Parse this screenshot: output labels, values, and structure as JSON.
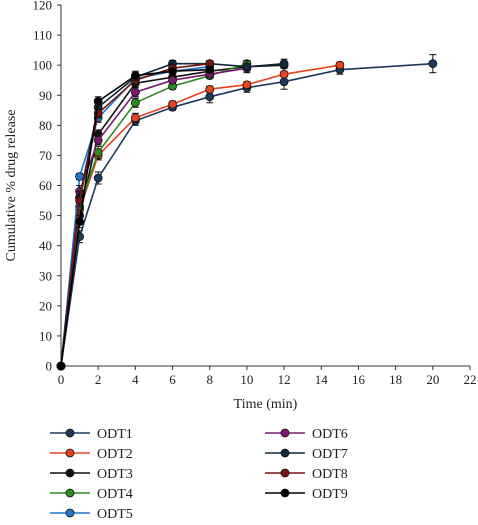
{
  "chart_data": {
    "type": "line",
    "xlabel": "Time (min)",
    "ylabel": "Cumulative % drug release",
    "xlim": [
      0,
      22
    ],
    "ylim": [
      0,
      120
    ],
    "xticks": [
      0,
      2,
      4,
      6,
      8,
      10,
      12,
      14,
      16,
      18,
      20,
      22
    ],
    "yticks": [
      0,
      10,
      20,
      30,
      40,
      50,
      60,
      70,
      80,
      90,
      100,
      110,
      120
    ],
    "grid": false,
    "legend_position": "bottom",
    "series": [
      {
        "name": "ODT1",
        "color": "#1d3a5c",
        "x": [
          0,
          1,
          2,
          4,
          6,
          8,
          10,
          12,
          15,
          20
        ],
        "y": [
          0,
          43,
          62.5,
          81.5,
          86,
          89.5,
          92.5,
          94.5,
          98.5,
          100.5
        ],
        "err": [
          0,
          2,
          2,
          1.5,
          1,
          2,
          1.5,
          2.5,
          1.5,
          3
        ]
      },
      {
        "name": "ODT2",
        "color": "#e8431f",
        "x": [
          0,
          1,
          2,
          4,
          6,
          8,
          10,
          12,
          15
        ],
        "y": [
          0,
          52,
          70,
          82.5,
          87,
          92,
          93.5,
          97,
          100
        ],
        "err": [
          0,
          2,
          1.5,
          1.5,
          1,
          1,
          1,
          1,
          1
        ]
      },
      {
        "name": "ODT3",
        "color": "#111111",
        "x": [
          0,
          1,
          2,
          4,
          6,
          8,
          10,
          12
        ],
        "y": [
          0,
          50,
          77,
          94,
          96,
          98,
          99.5,
          100
        ],
        "err": [
          0,
          2,
          1.5,
          1.5,
          1,
          1,
          1,
          1
        ]
      },
      {
        "name": "ODT4",
        "color": "#2e8b1e",
        "x": [
          0,
          1,
          2,
          4,
          6,
          8,
          10
        ],
        "y": [
          0,
          53,
          71,
          87.5,
          93,
          96.5,
          100.5
        ],
        "err": [
          0,
          2,
          2,
          1.5,
          1,
          1,
          1
        ]
      },
      {
        "name": "ODT5",
        "color": "#1f77c8",
        "x": [
          0,
          1,
          2,
          4,
          6,
          8
        ],
        "y": [
          0,
          63,
          82.5,
          95.5,
          98,
          99.5
        ],
        "err": [
          0,
          1,
          1.5,
          1.5,
          1,
          1
        ]
      },
      {
        "name": "ODT6",
        "color": "#7a1a6e",
        "x": [
          0,
          1,
          2,
          4,
          6,
          8,
          10
        ],
        "y": [
          0,
          58,
          75,
          91,
          95,
          97,
          99
        ],
        "err": [
          0,
          2,
          1.5,
          1.5,
          1,
          1,
          1
        ]
      },
      {
        "name": "ODT7",
        "color": "#0f2a3d",
        "x": [
          0,
          1,
          2,
          4,
          6,
          8,
          10,
          12
        ],
        "y": [
          0,
          56,
          86,
          96,
          100.5,
          100.5,
          99.5,
          100.5
        ],
        "err": [
          0,
          2,
          1.5,
          1.5,
          1,
          1,
          2,
          1.5
        ]
      },
      {
        "name": "ODT8",
        "color": "#7a1414",
        "x": [
          0,
          1,
          2,
          4,
          6,
          8
        ],
        "y": [
          0,
          55,
          84,
          95,
          99,
          100.5
        ],
        "err": [
          0,
          2,
          1.5,
          1.5,
          1,
          1
        ]
      },
      {
        "name": "ODT9",
        "color": "#000000",
        "x": [
          0,
          1,
          2,
          4,
          6,
          8
        ],
        "y": [
          0,
          48,
          88,
          96.5,
          98,
          98.5
        ],
        "err": [
          0,
          2,
          1.5,
          1.5,
          1,
          1
        ]
      }
    ]
  }
}
